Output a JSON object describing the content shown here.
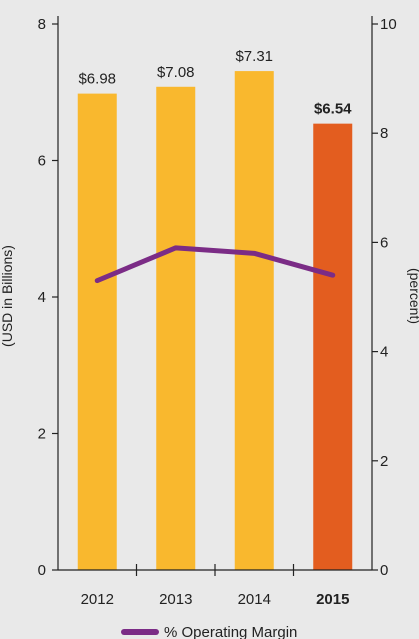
{
  "colors": {
    "background": "#e9e9e9",
    "bar": "#f9b82e",
    "bar_highlight": "#e35d1f",
    "line": "#7b2c86",
    "axis": "#222222"
  },
  "chart_data": {
    "type": "bar",
    "categories": [
      "2012",
      "2013",
      "2014",
      "2015"
    ],
    "highlight_category": "2015",
    "series": [
      {
        "values": [
          6.98,
          7.08,
          7.31,
          6.54
        ],
        "labels": [
          "$6.98",
          "$7.08",
          "$7.31",
          "$6.54"
        ],
        "axis": "left"
      },
      {
        "name": "% Operating Margin",
        "type": "line",
        "axis": "right",
        "values": [
          5.3,
          5.9,
          5.8,
          5.4
        ]
      }
    ],
    "ylabel": "(USD in Billions)",
    "ylim": [
      0,
      8
    ],
    "yticks": [
      "0",
      "2",
      "4",
      "6",
      "8"
    ],
    "y2label": "(percent)",
    "y2lim": [
      0,
      10
    ],
    "y2ticks": [
      "0",
      "2",
      "4",
      "6",
      "8",
      "10"
    ],
    "legend": {
      "position": "bottom-center",
      "label": "% Operating Margin"
    }
  }
}
